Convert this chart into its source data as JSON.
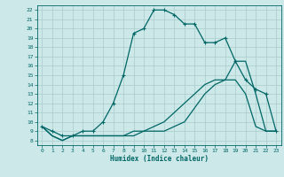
{
  "xlabel": "Humidex (Indice chaleur)",
  "bg_color": "#cce8e8",
  "grid_color": "#aacccc",
  "line_color": "#006666",
  "xlim": [
    -0.5,
    23.5
  ],
  "ylim": [
    7.5,
    22.5
  ],
  "yticks": [
    8,
    9,
    10,
    11,
    12,
    13,
    14,
    15,
    16,
    17,
    18,
    19,
    20,
    21,
    22
  ],
  "xticks": [
    0,
    1,
    2,
    3,
    4,
    5,
    6,
    7,
    8,
    9,
    10,
    11,
    12,
    13,
    14,
    15,
    16,
    17,
    18,
    19,
    20,
    21,
    22,
    23
  ],
  "line1_x": [
    0,
    1,
    2,
    3,
    4,
    5,
    6,
    7,
    8,
    9,
    10,
    11,
    12,
    13,
    14,
    15,
    16,
    17,
    18,
    19,
    20,
    21,
    22,
    23
  ],
  "line1_y": [
    9.5,
    9.0,
    8.5,
    8.5,
    9.0,
    9.0,
    10.0,
    12.0,
    15.0,
    19.5,
    20.0,
    22.0,
    22.0,
    21.5,
    20.5,
    20.5,
    18.5,
    18.5,
    19.0,
    16.5,
    14.5,
    13.5,
    13.0,
    9.0
  ],
  "line1_markers": true,
  "line2_x": [
    0,
    1,
    2,
    3,
    4,
    5,
    6,
    7,
    8,
    9,
    10,
    11,
    12,
    13,
    14,
    15,
    16,
    17,
    18,
    19,
    20,
    21,
    22,
    23
  ],
  "line2_y": [
    9.5,
    8.5,
    8.0,
    8.5,
    8.5,
    8.5,
    8.5,
    8.5,
    8.5,
    9.0,
    9.0,
    9.5,
    10.0,
    11.0,
    12.0,
    13.0,
    14.0,
    14.5,
    14.5,
    16.5,
    16.5,
    13.0,
    9.0,
    9.0
  ],
  "line2_markers": false,
  "line3_x": [
    0,
    1,
    2,
    3,
    4,
    5,
    6,
    7,
    8,
    9,
    10,
    11,
    12,
    13,
    14,
    15,
    16,
    17,
    18,
    19,
    20,
    21,
    22,
    23
  ],
  "line3_y": [
    9.5,
    8.5,
    8.0,
    8.5,
    8.5,
    8.5,
    8.5,
    8.5,
    8.5,
    8.5,
    9.0,
    9.0,
    9.0,
    9.5,
    10.0,
    11.5,
    13.0,
    14.0,
    14.5,
    14.5,
    13.0,
    9.5,
    9.0,
    9.0
  ],
  "line3_markers": false
}
